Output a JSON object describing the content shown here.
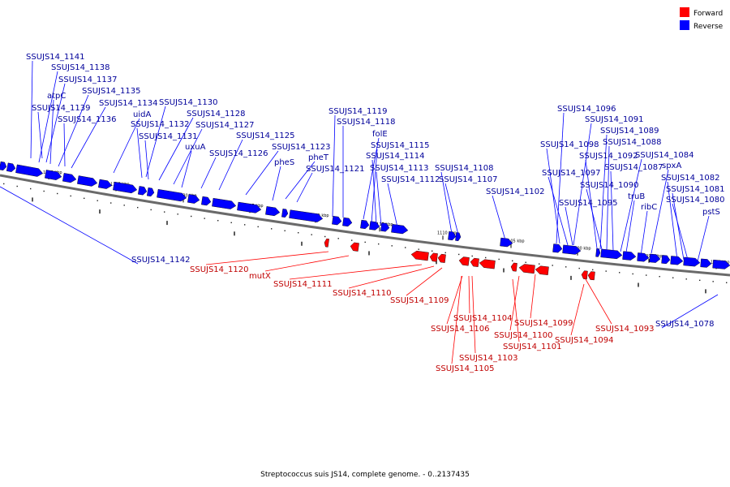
{
  "legend": {
    "items": [
      {
        "label": "Forward",
        "color": "#ff0000"
      },
      {
        "label": "Reverse",
        "color": "#0000ff"
      }
    ]
  },
  "caption": "Streptococcus suis JS14, complete genome. - 0..2137435",
  "colors": {
    "forward": "#ff0000",
    "reverse": "#0000ff",
    "forward_label": "#c00000",
    "reverse_label": "#00009a",
    "backbone": "#6a6a6a"
  },
  "ticks": [
    "1140 kbp",
    "1135 kbp",
    "1130 kbp",
    "1125 kbp",
    "1120 kbp",
    "1115 kbp",
    "1110 kbp",
    "1105 kbp",
    "1100 kbp",
    "1095 kbp",
    "1090 kbp"
  ],
  "reverse_labels": [
    "SSUJS14_1141",
    "SSUJS14_1138",
    "SSUJS14_1137",
    "atpC",
    "SSUJS14_1135",
    "SSUJS14_1134",
    "SSUJS14_1139",
    "SSUJS14_1136",
    "uidA",
    "SSUJS14_1130",
    "SSUJS14_1128",
    "SSUJS14_1132",
    "SSUJS14_1127",
    "SSUJS14_1131",
    "uxuA",
    "SSUJS14_1125",
    "SSUJS14_1126",
    "SSUJS14_1123",
    "pheS",
    "pheT",
    "SSUJS14_1121",
    "SSUJS14_1119",
    "SSUJS14_1118",
    "folE",
    "SSUJS14_1115",
    "SSUJS14_1114",
    "SSUJS14_1113",
    "SSUJS14_1112",
    "SSUJS14_1108",
    "SSUJS14_1107",
    "SSUJS14_1102",
    "SSUJS14_1096",
    "SSUJS14_1091",
    "SSUJS14_1089",
    "SSUJS14_1098",
    "SSUJS14_1088",
    "SSUJS14_1092",
    "SSUJS14_1084",
    "SSUJS14_1087",
    "spxA",
    "SSUJS14_1097",
    "SSUJS14_1082",
    "SSUJS14_1090",
    "SSUJS14_1081",
    "truB",
    "SSUJS14_1080",
    "SSUJS14_1095",
    "ribC",
    "pstS",
    "SSUJS14_1142",
    "SSUJS14_1078"
  ],
  "forward_labels": [
    "SSUJS14_1120",
    "mutX",
    "SSUJS14_1111",
    "SSUJS14_1110",
    "SSUJS14_1109",
    "SSUJS14_1104",
    "SSUJS14_1099",
    "SSUJS14_1106",
    "SSUJS14_1100",
    "SSUJS14_1101",
    "SSUJS14_1103",
    "SSUJS14_1105",
    "SSUJS14_1093",
    "SSUJS14_1094"
  ]
}
